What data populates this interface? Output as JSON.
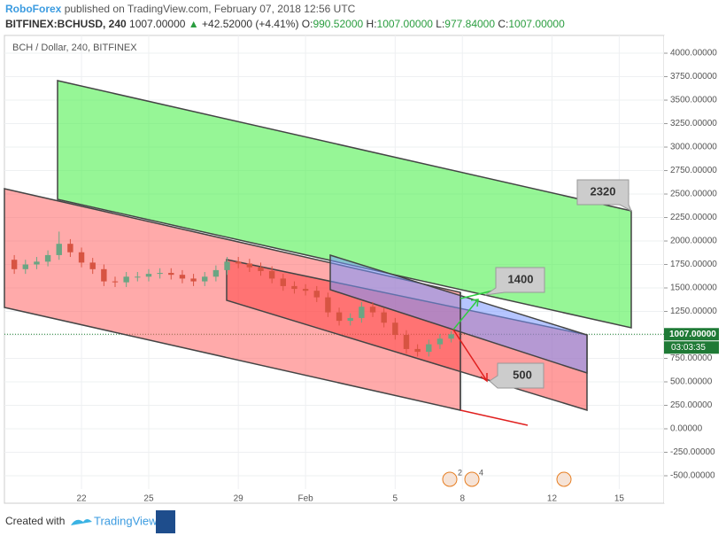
{
  "header": {
    "publisher": "RoboForex",
    "published": "published on TradingView.com, February 07, 2018 12:56 UTC",
    "symbol": "BITFINEX:BCHUSD, 240",
    "last": "1007.00000",
    "arrow": "▲",
    "change": "+42.52000 (+4.41%)",
    "ohlc": [
      {
        "key": "O:",
        "value": "990.52000"
      },
      {
        "key": "H:",
        "value": "1007.00000"
      },
      {
        "key": "L:",
        "value": "977.84000"
      },
      {
        "key": "C:",
        "value": "1007.00000"
      }
    ]
  },
  "chart_data": {
    "type": "candlestick",
    "title": "BCH / Dollar, 240, BITFINEX",
    "x": [
      19,
      19.5,
      20,
      20.5,
      21,
      21.5,
      22,
      22.5,
      23,
      23.5,
      24,
      24.5,
      25,
      25.5,
      26,
      26.5,
      27,
      27.5,
      28,
      28.5,
      29,
      29.5,
      30,
      30.5,
      31,
      31.5,
      32,
      32.5,
      33,
      33.5,
      34,
      34.5,
      35,
      35.5,
      36,
      36.5,
      37,
      37.5,
      38,
      38.5
    ],
    "open": [
      1800,
      1700,
      1750,
      1780,
      1850,
      1970,
      1880,
      1770,
      1700,
      1570,
      1560,
      1620,
      1620,
      1650,
      1660,
      1640,
      1600,
      1570,
      1620,
      1690,
      1780,
      1760,
      1720,
      1680,
      1600,
      1520,
      1490,
      1470,
      1400,
      1240,
      1150,
      1180,
      1300,
      1240,
      1130,
      1000,
      850,
      820,
      900,
      960
    ],
    "high": [
      1850,
      1800,
      1830,
      1900,
      2100,
      2020,
      1930,
      1820,
      1750,
      1620,
      1670,
      1670,
      1700,
      1710,
      1710,
      1690,
      1650,
      1670,
      1740,
      1830,
      1830,
      1810,
      1770,
      1730,
      1650,
      1570,
      1540,
      1520,
      1450,
      1290,
      1230,
      1350,
      1350,
      1290,
      1180,
      1050,
      900,
      950,
      1010,
      1040
    ],
    "low": [
      1650,
      1650,
      1700,
      1730,
      1800,
      1830,
      1720,
      1650,
      1520,
      1510,
      1510,
      1570,
      1570,
      1600,
      1590,
      1550,
      1520,
      1520,
      1570,
      1640,
      1710,
      1670,
      1630,
      1550,
      1470,
      1440,
      1420,
      1350,
      1190,
      1100,
      1100,
      1130,
      1190,
      1080,
      950,
      800,
      770,
      770,
      850,
      920
    ],
    "close": [
      1700,
      1750,
      1780,
      1850,
      1970,
      1880,
      1770,
      1700,
      1570,
      1560,
      1620,
      1620,
      1650,
      1660,
      1640,
      1600,
      1570,
      1620,
      1690,
      1780,
      1760,
      1720,
      1680,
      1600,
      1520,
      1490,
      1470,
      1400,
      1240,
      1150,
      1180,
      1300,
      1240,
      1130,
      1000,
      850,
      820,
      900,
      960,
      1007
    ],
    "up_color": "#6ba583",
    "down_color": "#d75442",
    "xlim": [
      18.56,
      48.0
    ],
    "xticks": [
      {
        "value": 22,
        "label": "22"
      },
      {
        "value": 25,
        "label": "25"
      },
      {
        "value": 29,
        "label": "29"
      },
      {
        "value": 32,
        "label": "Feb"
      },
      {
        "value": 36,
        "label": "5"
      },
      {
        "value": 39,
        "label": "8"
      },
      {
        "value": 43,
        "label": "12"
      },
      {
        "value": 46,
        "label": "15"
      }
    ],
    "ylim": [
      -641.5,
      4189
    ],
    "yticks": [
      {
        "value": -500,
        "label": "-500.00000"
      },
      {
        "value": -250,
        "label": "-250.00000"
      },
      {
        "value": 0,
        "label": "0.00000"
      },
      {
        "value": 250,
        "label": "250.00000"
      },
      {
        "value": 500,
        "label": "500.00000"
      },
      {
        "value": 750,
        "label": "750.00000"
      },
      {
        "value": 1000,
        "label": "1000.00000"
      },
      {
        "value": 1250,
        "label": "1250.00000"
      },
      {
        "value": 1500,
        "label": "1500.00000"
      },
      {
        "value": 1750,
        "label": "1750.00000"
      },
      {
        "value": 2000,
        "label": "2000.00000"
      },
      {
        "value": 2250,
        "label": "2250.00000"
      },
      {
        "value": 2500,
        "label": "2500.00000"
      },
      {
        "value": 2750,
        "label": "2750.00000"
      },
      {
        "value": 3000,
        "label": "3000.00000"
      },
      {
        "value": 3250,
        "label": "3250.00000"
      },
      {
        "value": 3500,
        "label": "3500.00000"
      },
      {
        "value": 3750,
        "label": "3750.00000"
      },
      {
        "value": 4000,
        "label": "4000.00000"
      }
    ],
    "grid": true,
    "last_price": {
      "value": 1007,
      "label": "1007.00000"
    },
    "countdown": "03:03:35",
    "annotations": [
      "2320",
      "1400",
      "500"
    ],
    "events": [
      "2",
      "4"
    ]
  },
  "footer": {
    "created": "Created with",
    "brand": "TradingView"
  }
}
